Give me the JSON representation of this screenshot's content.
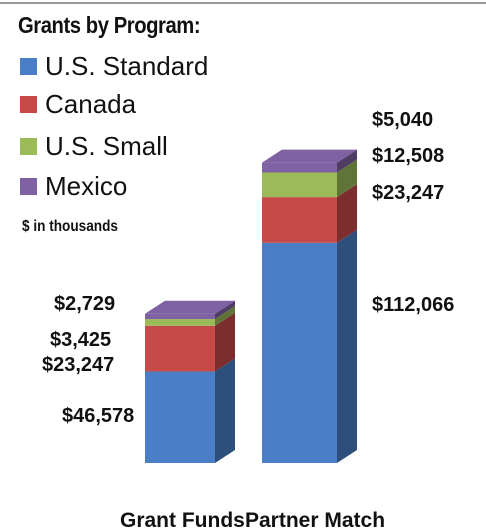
{
  "chart_data": {
    "type": "bar",
    "stacked": true,
    "title": "Grants by Program:",
    "note": "$ in thousands",
    "categories": [
      "Grant Funds",
      "Partner Match"
    ],
    "series": [
      {
        "name": "U.S. Standard",
        "color": "#4a7fc7",
        "values": [
          46578,
          112066
        ],
        "labels": [
          "$46,578",
          "$112,066"
        ]
      },
      {
        "name": "Canada",
        "color": "#c64a48",
        "values": [
          23247,
          23247
        ],
        "labels": [
          "$23,247",
          "$23,247"
        ]
      },
      {
        "name": "U.S. Small",
        "color": "#9bbb59",
        "values": [
          3425,
          12508
        ],
        "labels": [
          "$3,425",
          "$12,508"
        ]
      },
      {
        "name": "Mexico",
        "color": "#7f62a3",
        "values": [
          2729,
          5040
        ],
        "labels": [
          "$2,729",
          "$5,040"
        ]
      }
    ],
    "grid": false,
    "legend_position": "top-left"
  }
}
